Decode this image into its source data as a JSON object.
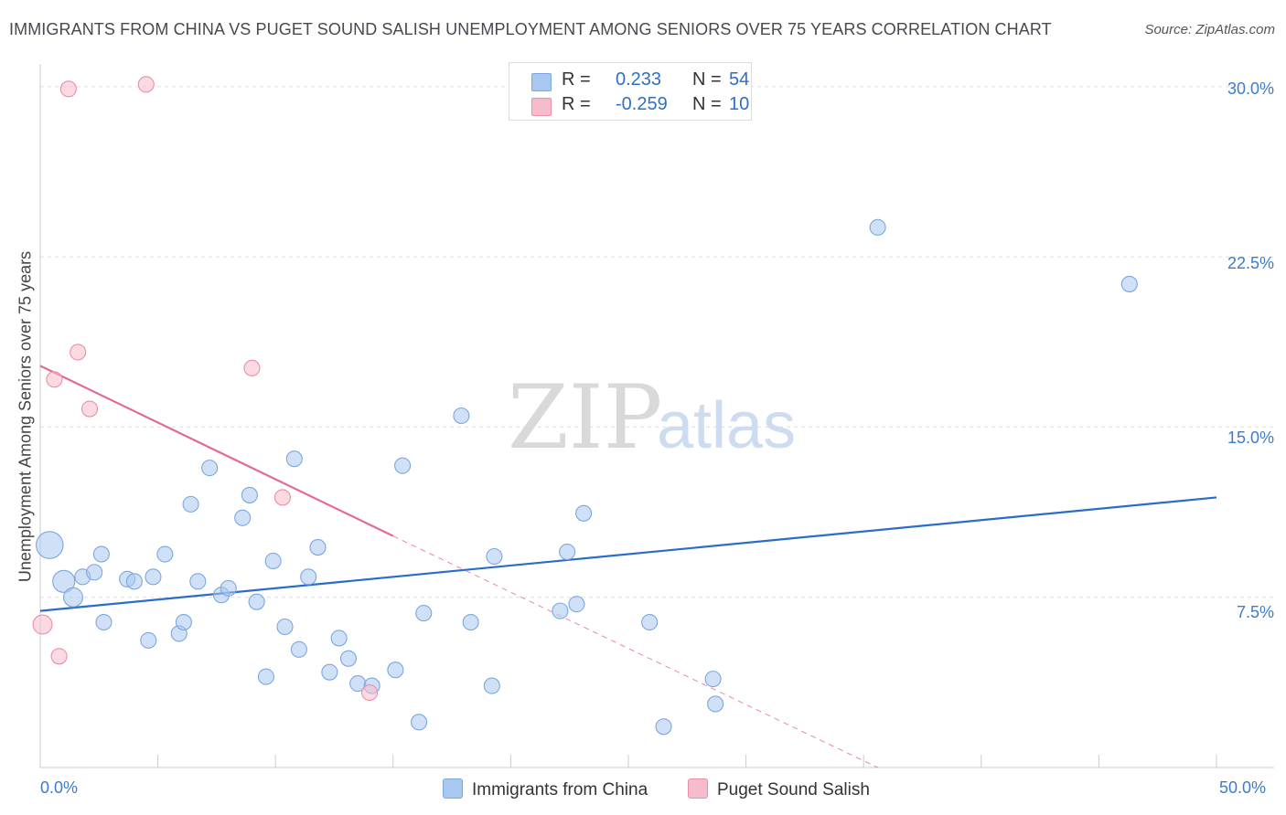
{
  "title": "IMMIGRANTS FROM CHINA VS PUGET SOUND SALISH UNEMPLOYMENT AMONG SENIORS OVER 75 YEARS CORRELATION CHART",
  "source": "Source: ZipAtlas.com",
  "watermark": {
    "zip": "ZIP",
    "atlas": "atlas"
  },
  "legend": {
    "r_label": "R =",
    "n_label": "N =",
    "entries": [
      {
        "name": "Immigrants from China",
        "r": "0.233",
        "n": "54",
        "color": "#a9c8f0",
        "stroke": "#7ba7de"
      },
      {
        "name": "Puget Sound Salish",
        "r": "-0.259",
        "n": "10",
        "color": "#f7bccb",
        "stroke": "#e98fa6"
      }
    ]
  },
  "chart_data": {
    "type": "scatter",
    "title": "IMMIGRANTS FROM CHINA VS PUGET SOUND SALISH UNEMPLOYMENT AMONG SENIORS OVER 75 YEARS CORRELATION CHART",
    "xlabel": "",
    "ylabel": "Unemployment Among Seniors over 75 years",
    "xlim": [
      0,
      50
    ],
    "ylim": [
      0,
      31
    ],
    "x_tick_labels": [
      "0.0%",
      "50.0%"
    ],
    "y_ticks": [
      7.5,
      15.0,
      22.5,
      30.0
    ],
    "y_tick_labels": [
      "7.5%",
      "15.0%",
      "22.5%",
      "30.0%"
    ],
    "grid": true,
    "series": [
      {
        "name": "Immigrants from China",
        "color": "#a9c8f0",
        "stroke": "#7ba7de",
        "points": [
          [
            0.4,
            9.8,
            3
          ],
          [
            1.0,
            8.2,
            2
          ],
          [
            1.4,
            7.5,
            1.5
          ],
          [
            1.8,
            8.4,
            1
          ],
          [
            2.3,
            8.6,
            1
          ],
          [
            2.6,
            9.4,
            1
          ],
          [
            2.7,
            6.4,
            1
          ],
          [
            3.7,
            8.3,
            1
          ],
          [
            4.0,
            8.2,
            1
          ],
          [
            4.6,
            5.6,
            1
          ],
          [
            4.8,
            8.4,
            1
          ],
          [
            5.3,
            9.4,
            1
          ],
          [
            5.9,
            5.9,
            1
          ],
          [
            6.1,
            6.4,
            1
          ],
          [
            6.4,
            11.6,
            1
          ],
          [
            6.7,
            8.2,
            1
          ],
          [
            7.2,
            13.2,
            1
          ],
          [
            7.7,
            7.6,
            1
          ],
          [
            8.0,
            7.9,
            1
          ],
          [
            8.6,
            11.0,
            1
          ],
          [
            8.9,
            12.0,
            1
          ],
          [
            9.2,
            7.3,
            1
          ],
          [
            9.6,
            4.0,
            1
          ],
          [
            9.9,
            9.1,
            1
          ],
          [
            10.4,
            6.2,
            1
          ],
          [
            10.8,
            13.6,
            1
          ],
          [
            11.0,
            5.2,
            1
          ],
          [
            11.4,
            8.4,
            1
          ],
          [
            11.8,
            9.7,
            1
          ],
          [
            12.3,
            4.2,
            1
          ],
          [
            12.7,
            5.7,
            1
          ],
          [
            13.1,
            4.8,
            1
          ],
          [
            13.5,
            3.7,
            1
          ],
          [
            14.1,
            3.6,
            1
          ],
          [
            15.1,
            4.3,
            1
          ],
          [
            15.4,
            13.3,
            1
          ],
          [
            16.1,
            2.0,
            1
          ],
          [
            16.3,
            6.8,
            1
          ],
          [
            17.9,
            15.5,
            1
          ],
          [
            18.3,
            6.4,
            1
          ],
          [
            19.2,
            3.6,
            1
          ],
          [
            19.3,
            9.3,
            1
          ],
          [
            22.1,
            6.9,
            1
          ],
          [
            22.4,
            9.5,
            1
          ],
          [
            22.8,
            7.2,
            1
          ],
          [
            23.1,
            11.2,
            1
          ],
          [
            25.9,
            6.4,
            1
          ],
          [
            26.5,
            1.8,
            1
          ],
          [
            28.6,
            3.9,
            1
          ],
          [
            28.7,
            2.8,
            1
          ],
          [
            35.6,
            23.8,
            1
          ],
          [
            46.3,
            21.3,
            1
          ]
        ]
      },
      {
        "name": "Puget Sound Salish",
        "color": "#f7bccb",
        "stroke": "#e98fa6",
        "points": [
          [
            0.1,
            6.3,
            1.5
          ],
          [
            0.6,
            17.1,
            1
          ],
          [
            0.8,
            4.9,
            1
          ],
          [
            1.2,
            29.9,
            1
          ],
          [
            1.6,
            18.3,
            1
          ],
          [
            2.1,
            15.8,
            1
          ],
          [
            4.5,
            30.1,
            1
          ],
          [
            9.0,
            17.6,
            1
          ],
          [
            10.3,
            11.9,
            1
          ],
          [
            14.0,
            3.3,
            1
          ]
        ]
      }
    ],
    "trend_lines": [
      {
        "series": "Immigrants from China",
        "from": [
          0,
          6.9
        ],
        "to": [
          50,
          11.9
        ],
        "color": "#2a6dc8"
      },
      {
        "series": "Puget Sound Salish",
        "from": [
          0,
          17.7
        ],
        "to": [
          15.0,
          10.2
        ],
        "dashed_to": [
          35.6,
          0
        ],
        "color": "#e26a93"
      }
    ]
  },
  "bottom_legend": [
    "Immigrants from China",
    "Puget Sound Salish"
  ]
}
